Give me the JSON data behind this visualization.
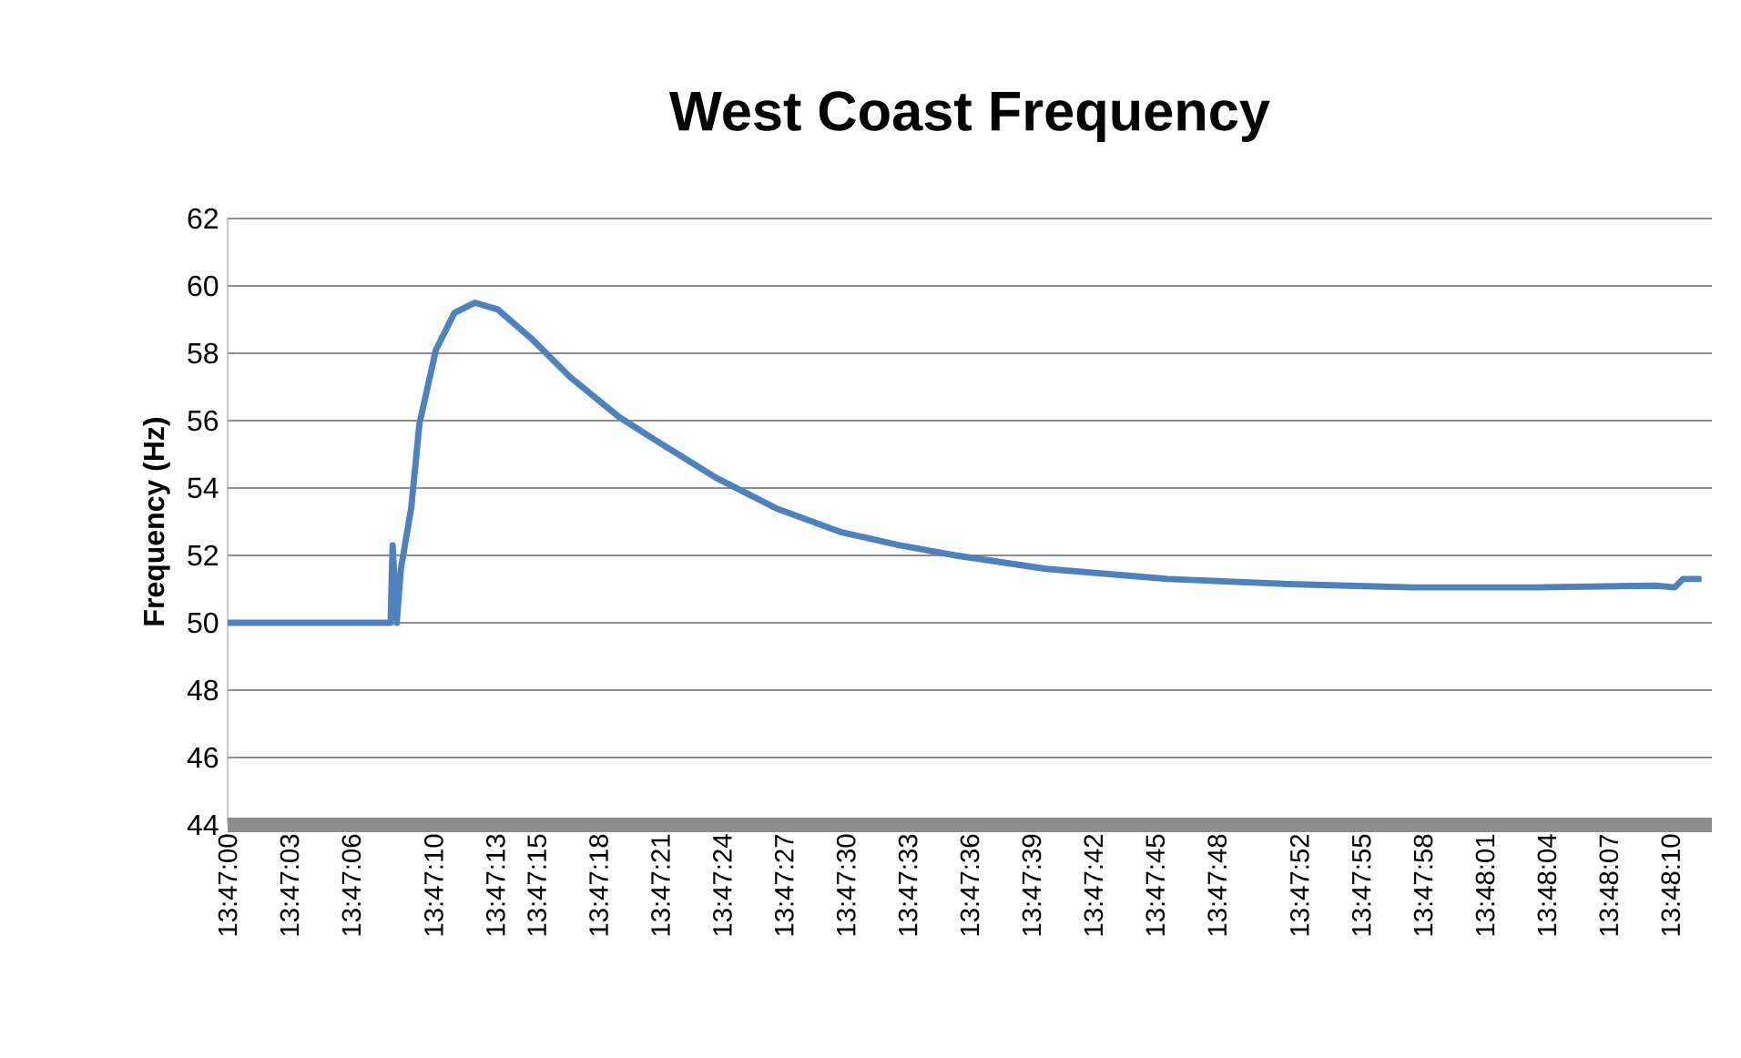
{
  "chart_data": {
    "type": "line",
    "title": "West Coast Frequency",
    "ylabel": "Frequency (Hz)",
    "x": [
      13.783333,
      13.785528,
      13.785556,
      13.785611,
      13.785667,
      13.785806,
      13.785917,
      13.786139,
      13.786389,
      13.786667,
      13.786972,
      13.787444,
      13.787944,
      13.788611,
      13.789111,
      13.789917,
      13.790722,
      13.791583,
      13.792389,
      13.793139,
      13.794361,
      13.796,
      13.797639,
      13.799306,
      13.800944,
      13.802583,
      13.802833,
      13.802944,
      13.803194
    ],
    "series": [
      {
        "color": "#4f81bd",
        "values": [
          50,
          50,
          52.3,
          50.0,
          51.6,
          53.4,
          55.9,
          58.1,
          59.2,
          59.5,
          59.3,
          58.4,
          57.3,
          56.1,
          55.4,
          54.3,
          53.4,
          52.7,
          52.3,
          52.0,
          51.6,
          51.3,
          51.15,
          51.05,
          51.05,
          51.1,
          51.05,
          51.3,
          51.3
        ]
      }
    ],
    "xlim": [
      13.783333,
      13.803333
    ],
    "ylim": [
      44,
      62
    ],
    "yticks": [
      44,
      46,
      48,
      50,
      52,
      54,
      56,
      58,
      60,
      62
    ],
    "xticks": [
      {
        "value": 13.783333,
        "label": "13:47:00"
      },
      {
        "value": 13.784167,
        "label": "13:47:03"
      },
      {
        "value": 13.785,
        "label": "13:47:06"
      },
      {
        "value": 13.786111,
        "label": "13:47:10"
      },
      {
        "value": 13.786944,
        "label": "13:47:13"
      },
      {
        "value": 13.7875,
        "label": "13:47:15"
      },
      {
        "value": 13.788333,
        "label": "13:47:18"
      },
      {
        "value": 13.789167,
        "label": "13:47:21"
      },
      {
        "value": 13.79,
        "label": "13:47:24"
      },
      {
        "value": 13.790833,
        "label": "13:47:27"
      },
      {
        "value": 13.791667,
        "label": "13:47:30"
      },
      {
        "value": 13.7925,
        "label": "13:47:33"
      },
      {
        "value": 13.793333,
        "label": "13:47:36"
      },
      {
        "value": 13.794167,
        "label": "13:47:39"
      },
      {
        "value": 13.795,
        "label": "13:47:42"
      },
      {
        "value": 13.795833,
        "label": "13:47:45"
      },
      {
        "value": 13.796667,
        "label": "13:47:48"
      },
      {
        "value": 13.797778,
        "label": "13:47:52"
      },
      {
        "value": 13.798611,
        "label": "13:47:55"
      },
      {
        "value": 13.799444,
        "label": "13:47:58"
      },
      {
        "value": 13.800278,
        "label": "13:48:01"
      },
      {
        "value": 13.801111,
        "label": "13:48:04"
      },
      {
        "value": 13.801944,
        "label": "13:48:07"
      },
      {
        "value": 13.802778,
        "label": "13:48:10"
      }
    ],
    "grid": "y"
  }
}
